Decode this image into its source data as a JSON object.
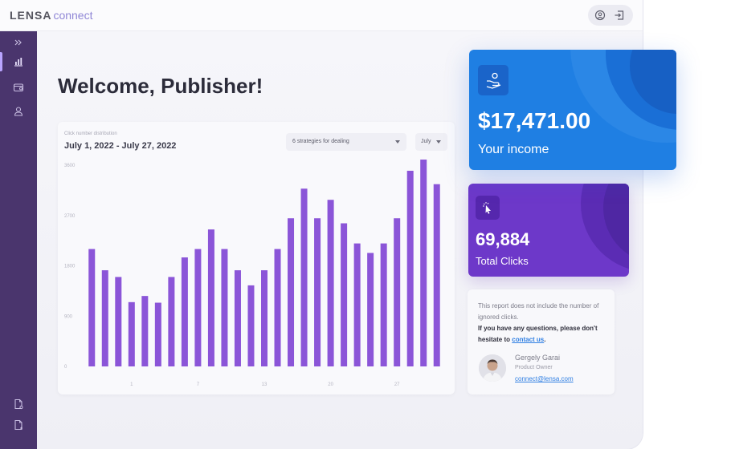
{
  "app": {
    "brand_main": "LENSA",
    "brand_sub": "connect"
  },
  "topbar": {
    "icons": [
      "user-circle-icon",
      "logout-icon"
    ]
  },
  "sidebar": {
    "items": [
      "expand-icon",
      "bar-chart-icon",
      "wallet-icon",
      "user-icon",
      "document-icon",
      "document-settings-icon"
    ],
    "active": "bar-chart-icon"
  },
  "page": {
    "welcome": "Welcome, Publisher!"
  },
  "chart_card": {
    "subtitle": "Click number distribution",
    "date_range": "July 1, 2022 - July 27, 2022",
    "strategy_select": "6 strategies for dealing",
    "month_select": "July"
  },
  "chart_data": {
    "type": "bar",
    "title": "",
    "xlabel": "",
    "ylabel": "",
    "ylim": [
      0,
      3600
    ],
    "yticks": [
      "0",
      "900",
      "1800",
      "2700",
      "3600"
    ],
    "xticks": [
      {
        "day": 4,
        "label": "1"
      },
      {
        "day": 9,
        "label": "7"
      },
      {
        "day": 14,
        "label": "13"
      },
      {
        "day": 19,
        "label": "20"
      },
      {
        "day": 24,
        "label": "27"
      }
    ],
    "values": [
      2100,
      1720,
      1600,
      1150,
      1260,
      1140,
      1600,
      1950,
      2100,
      2450,
      2100,
      1720,
      1450,
      1720,
      2100,
      2650,
      3180,
      2650,
      2980,
      2560,
      2200,
      2030,
      2200,
      2650,
      3500,
      3700,
      3260
    ],
    "color": "#8b55d8",
    "grid": false,
    "legend": "none"
  },
  "income_card": {
    "value": "$17,471.00",
    "label": "Your income",
    "color": "#1f7fe3",
    "icon": "hand-coin-icon"
  },
  "clicks_card": {
    "value": "69,884",
    "label": "Total Clicks",
    "color": "#6d38c9",
    "icon": "cursor-click-icon"
  },
  "note_card": {
    "line1": "This report does not include the number of ignored clicks.",
    "line2": "If you have any questions, please don't hesitate to",
    "link": "contact us",
    "line2_end": ".",
    "person": {
      "name": "Gergely Garai",
      "role": "Product Owner",
      "email": "connect@lensa.com"
    }
  }
}
